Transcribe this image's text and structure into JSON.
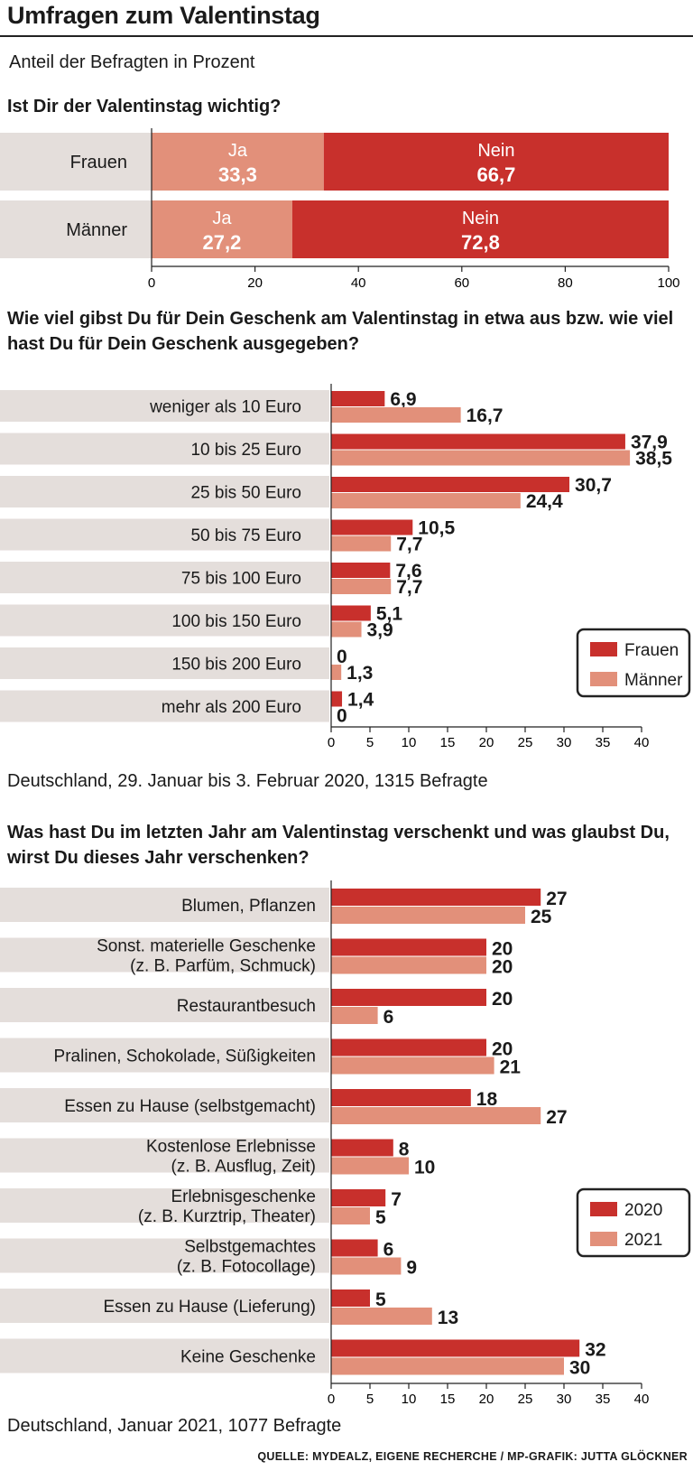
{
  "title": "Umfragen zum Valentinstag",
  "subtitle": "Anteil der Befragten in Prozent",
  "colors": {
    "dark": "#c8302c",
    "light": "#e2907a",
    "label_bg": "#e4dedb"
  },
  "chart1": {
    "question": "Ist Dir der Valentinstag wichtig?",
    "chart_data": {
      "type": "bar",
      "orientation": "horizontal-stacked",
      "categories": [
        "Frauen",
        "Männer"
      ],
      "series": [
        {
          "name": "Ja",
          "values": [
            33.3,
            27.2
          ],
          "labels": [
            "33,3",
            "27,2"
          ]
        },
        {
          "name": "Nein",
          "values": [
            66.7,
            72.8
          ],
          "labels": [
            "66,7",
            "72,8"
          ]
        }
      ],
      "xlim": [
        0,
        100
      ],
      "xticks": [
        "0",
        "20",
        "40",
        "60",
        "80",
        "100"
      ]
    }
  },
  "chart2": {
    "question": "Wie viel gibst Du für Dein Geschenk am Valentinstag in etwa aus bzw. wie viel hast Du für Dein Geschenk ausgegeben?",
    "note": "Deutschland, 29. Januar bis 3. Februar 2020, 1315 Befragte",
    "chart_data": {
      "type": "bar",
      "orientation": "horizontal-grouped",
      "categories": [
        "weniger als 10 Euro",
        "10 bis 25 Euro",
        "25 bis 50 Euro",
        "50 bis 75 Euro",
        "75 bis 100 Euro",
        "100 bis 150 Euro",
        "150 bis 200 Euro",
        "mehr als 200 Euro"
      ],
      "series": [
        {
          "name": "Frauen",
          "values": [
            6.9,
            37.9,
            30.7,
            10.5,
            7.6,
            5.1,
            0,
            1.4
          ],
          "labels": [
            "6,9",
            "37,9",
            "30,7",
            "10,5",
            "7,6",
            "5,1",
            "0",
            "1,4"
          ]
        },
        {
          "name": "Männer",
          "values": [
            16.7,
            38.5,
            24.4,
            7.7,
            7.7,
            3.9,
            1.3,
            0
          ],
          "labels": [
            "16,7",
            "38,5",
            "24,4",
            "7,7",
            "7,7",
            "3,9",
            "1,3",
            "0"
          ]
        }
      ],
      "xlim": [
        0,
        40
      ],
      "xticks": [
        "0",
        "5",
        "10",
        "15",
        "20",
        "25",
        "30",
        "35",
        "40"
      ],
      "legend": "bottom-right"
    }
  },
  "chart3": {
    "question": "Was hast Du im letzten Jahr am Valentinstag verschenkt und was glaubst Du, wirst Du dieses Jahr verschenken?",
    "note": "Deutschland, Januar 2021, 1077 Befragte",
    "chart_data": {
      "type": "bar",
      "orientation": "horizontal-grouped",
      "categories": [
        [
          "Blumen, Pflanzen"
        ],
        [
          "Sonst. materielle Geschenke",
          "(z. B. Parfüm, Schmuck)"
        ],
        [
          "Restaurantbesuch"
        ],
        [
          "Pralinen, Schokolade, Süßigkeiten"
        ],
        [
          "Essen zu Hause (selbstgemacht)"
        ],
        [
          "Kostenlose Erlebnisse",
          "(z. B. Ausflug, Zeit)"
        ],
        [
          "Erlebnisgeschenke",
          "(z. B. Kurztrip, Theater)"
        ],
        [
          "Selbstgemachtes",
          "(z. B. Fotocollage)"
        ],
        [
          "Essen zu Hause (Lieferung)"
        ],
        [
          "Keine Geschenke"
        ]
      ],
      "series": [
        {
          "name": "2020",
          "values": [
            27,
            20,
            20,
            20,
            18,
            8,
            7,
            6,
            5,
            32
          ],
          "labels": [
            "27",
            "20",
            "20",
            "20",
            "18",
            "8",
            "7",
            "6",
            "5",
            "32"
          ]
        },
        {
          "name": "2021",
          "values": [
            25,
            20,
            6,
            21,
            27,
            10,
            5,
            9,
            13,
            30
          ],
          "labels": [
            "25",
            "20",
            "6",
            "21",
            "27",
            "10",
            "5",
            "9",
            "13",
            "30"
          ]
        }
      ],
      "xlim": [
        0,
        40
      ],
      "xticks": [
        "0",
        "5",
        "10",
        "15",
        "20",
        "25",
        "30",
        "35",
        "40"
      ],
      "legend": "right"
    }
  },
  "source": "QUELLE: MYDEALZ, EIGENE RECHERCHE / MP-GRAFIK: JUTTA GLÖCKNER"
}
